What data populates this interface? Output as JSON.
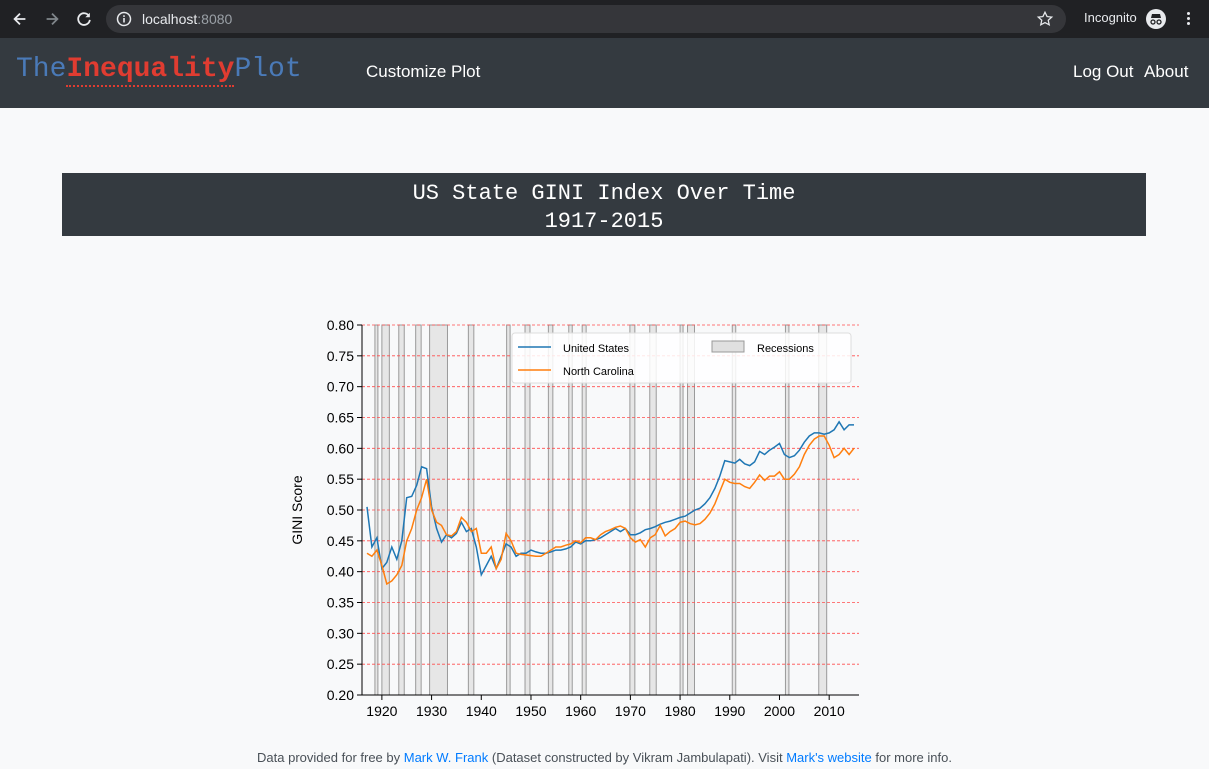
{
  "browser": {
    "url_host": "localhost",
    "url_port": ":8080",
    "mode_label": "Incognito"
  },
  "navbar": {
    "brand_the": "The",
    "brand_inequality": "Inequality",
    "brand_plot": "Plot",
    "customize_label": "Customize Plot",
    "logout_label": "Log Out",
    "about_label": "About"
  },
  "banner": {
    "title": "US State GINI Index Over Time",
    "range": "1917-2015"
  },
  "footer": {
    "t1": "Data provided for free by ",
    "link1": "Mark W. Frank",
    "t2": " (Dataset constructed by Vikram Jambulapati). Visit ",
    "link2": "Mark's website",
    "t3": " for more info."
  },
  "chart_data": {
    "type": "line",
    "title": "",
    "xlabel": "",
    "ylabel": "GINI Score",
    "xlim": [
      1916,
      2016
    ],
    "ylim": [
      0.2,
      0.8
    ],
    "xticks": [
      1920,
      1930,
      1940,
      1950,
      1960,
      1970,
      1980,
      1990,
      2000,
      2010
    ],
    "yticks": [
      "0.20",
      "0.25",
      "0.30",
      "0.35",
      "0.40",
      "0.45",
      "0.50",
      "0.55",
      "0.60",
      "0.65",
      "0.70",
      "0.75",
      "0.80"
    ],
    "grid": "horizontal dashed",
    "legend_position": "top-right",
    "colors": {
      "us": "#1f77b4",
      "nc": "#ff7f0e",
      "recession": "#e6e6e6",
      "grid": "#ff4d4d"
    },
    "legend": {
      "us": "United States",
      "nc": "North Carolina",
      "recessions": "Recessions"
    },
    "recessions": [
      [
        1918.6,
        1919.2
      ],
      [
        1920.0,
        1921.5
      ],
      [
        1923.4,
        1924.5
      ],
      [
        1926.8,
        1927.9
      ],
      [
        1929.6,
        1933.2
      ],
      [
        1937.4,
        1938.5
      ],
      [
        1945.1,
        1945.8
      ],
      [
        1948.8,
        1949.8
      ],
      [
        1953.5,
        1954.4
      ],
      [
        1957.6,
        1958.3
      ],
      [
        1960.3,
        1961.1
      ],
      [
        1969.9,
        1970.9
      ],
      [
        1973.9,
        1975.2
      ],
      [
        1980.0,
        1980.6
      ],
      [
        1981.5,
        1982.9
      ],
      [
        1990.5,
        1991.2
      ],
      [
        2001.2,
        2001.9
      ],
      [
        2007.9,
        2009.5
      ]
    ],
    "series": [
      {
        "name": "United States",
        "x": [
          1917,
          1918,
          1919,
          1920,
          1921,
          1922,
          1923,
          1924,
          1925,
          1926,
          1927,
          1928,
          1929,
          1930,
          1931,
          1932,
          1933,
          1934,
          1935,
          1936,
          1937,
          1938,
          1939,
          1940,
          1941,
          1942,
          1943,
          1944,
          1945,
          1946,
          1947,
          1948,
          1949,
          1950,
          1951,
          1952,
          1953,
          1954,
          1955,
          1956,
          1957,
          1958,
          1959,
          1960,
          1961,
          1962,
          1963,
          1964,
          1965,
          1966,
          1967,
          1968,
          1969,
          1970,
          1971,
          1972,
          1973,
          1974,
          1975,
          1976,
          1977,
          1978,
          1979,
          1980,
          1981,
          1982,
          1983,
          1984,
          1985,
          1986,
          1987,
          1988,
          1989,
          1990,
          1991,
          1992,
          1993,
          1994,
          1995,
          1996,
          1997,
          1998,
          1999,
          2000,
          2001,
          2002,
          2003,
          2004,
          2005,
          2006,
          2007,
          2008,
          2009,
          2010,
          2011,
          2012,
          2013,
          2014,
          2015
        ],
        "values": [
          0.505,
          0.44,
          0.455,
          0.405,
          0.415,
          0.44,
          0.42,
          0.45,
          0.52,
          0.522,
          0.54,
          0.57,
          0.567,
          0.505,
          0.47,
          0.448,
          0.46,
          0.455,
          0.462,
          0.48,
          0.465,
          0.47,
          0.44,
          0.395,
          0.41,
          0.425,
          0.405,
          0.425,
          0.445,
          0.44,
          0.425,
          0.43,
          0.43,
          0.435,
          0.432,
          0.43,
          0.43,
          0.432,
          0.435,
          0.435,
          0.437,
          0.44,
          0.448,
          0.445,
          0.45,
          0.45,
          0.452,
          0.455,
          0.46,
          0.465,
          0.47,
          0.465,
          0.47,
          0.46,
          0.46,
          0.463,
          0.468,
          0.47,
          0.473,
          0.477,
          0.48,
          0.482,
          0.485,
          0.488,
          0.49,
          0.495,
          0.5,
          0.503,
          0.51,
          0.52,
          0.535,
          0.555,
          0.58,
          0.578,
          0.576,
          0.582,
          0.575,
          0.572,
          0.578,
          0.595,
          0.59,
          0.597,
          0.602,
          0.608,
          0.59,
          0.585,
          0.588,
          0.597,
          0.61,
          0.62,
          0.625,
          0.625,
          0.623,
          0.625,
          0.63,
          0.643,
          0.63,
          0.638,
          0.638
        ]
      },
      {
        "name": "North Carolina",
        "x": [
          1917,
          1918,
          1919,
          1920,
          1921,
          1922,
          1923,
          1924,
          1925,
          1926,
          1927,
          1928,
          1929,
          1930,
          1931,
          1932,
          1933,
          1934,
          1935,
          1936,
          1937,
          1938,
          1939,
          1940,
          1941,
          1942,
          1943,
          1944,
          1945,
          1946,
          1947,
          1948,
          1949,
          1950,
          1951,
          1952,
          1953,
          1954,
          1955,
          1956,
          1957,
          1958,
          1959,
          1960,
          1961,
          1962,
          1963,
          1964,
          1965,
          1966,
          1967,
          1968,
          1969,
          1970,
          1971,
          1972,
          1973,
          1974,
          1975,
          1976,
          1977,
          1978,
          1979,
          1980,
          1981,
          1982,
          1983,
          1984,
          1985,
          1986,
          1987,
          1988,
          1989,
          1990,
          1991,
          1992,
          1993,
          1994,
          1995,
          1996,
          1997,
          1998,
          1999,
          2000,
          2001,
          2002,
          2003,
          2004,
          2005,
          2006,
          2007,
          2008,
          2009,
          2010,
          2011,
          2012,
          2013,
          2014,
          2015
        ],
        "values": [
          0.43,
          0.425,
          0.435,
          0.41,
          0.38,
          0.385,
          0.395,
          0.41,
          0.45,
          0.47,
          0.5,
          0.52,
          0.55,
          0.5,
          0.48,
          0.475,
          0.46,
          0.458,
          0.465,
          0.488,
          0.48,
          0.465,
          0.47,
          0.43,
          0.43,
          0.44,
          0.405,
          0.42,
          0.462,
          0.45,
          0.43,
          0.428,
          0.427,
          0.426,
          0.425,
          0.425,
          0.43,
          0.435,
          0.44,
          0.44,
          0.443,
          0.445,
          0.45,
          0.447,
          0.455,
          0.455,
          0.452,
          0.46,
          0.465,
          0.468,
          0.472,
          0.474,
          0.47,
          0.455,
          0.448,
          0.452,
          0.44,
          0.455,
          0.46,
          0.475,
          0.458,
          0.465,
          0.47,
          0.48,
          0.482,
          0.478,
          0.476,
          0.478,
          0.485,
          0.495,
          0.51,
          0.53,
          0.55,
          0.545,
          0.543,
          0.543,
          0.538,
          0.535,
          0.545,
          0.557,
          0.548,
          0.555,
          0.555,
          0.562,
          0.55,
          0.55,
          0.558,
          0.57,
          0.59,
          0.605,
          0.615,
          0.62,
          0.62,
          0.605,
          0.585,
          0.59,
          0.6,
          0.59,
          0.6
        ]
      }
    ]
  }
}
